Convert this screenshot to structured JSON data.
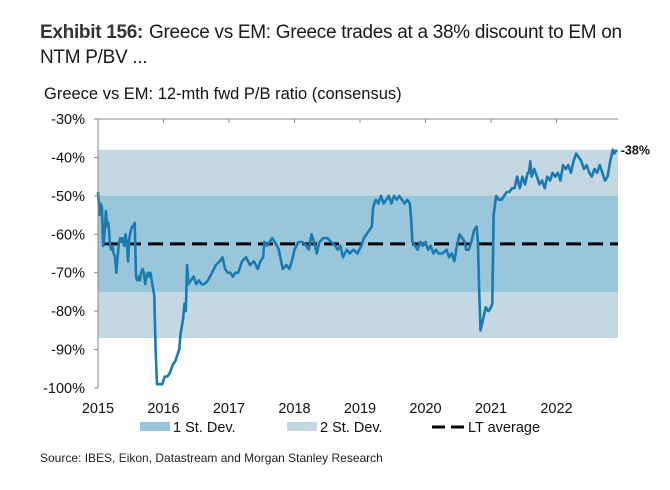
{
  "exhibit": {
    "label": "Exhibit 156:",
    "headline": "Greece vs EM: Greece trades at a 38% discount to EM on NTM P/BV ..."
  },
  "source": "Source: IBES, Eikon, Datastream and Morgan Stanley Research",
  "chart_data": {
    "type": "line",
    "title": "Greece vs EM: 12-mth fwd P/B ratio (consensus)",
    "xlabel": "",
    "ylabel": "",
    "xlim": [
      2015.0,
      2022.95
    ],
    "ylim": [
      -100,
      -30
    ],
    "x_ticks": [
      "2015",
      "2016",
      "2017",
      "2018",
      "2019",
      "2020",
      "2021",
      "2022"
    ],
    "y_ticks": [
      "-30%",
      "-40%",
      "-50%",
      "-60%",
      "-70%",
      "-80%",
      "-90%",
      "-100%"
    ],
    "grid": false,
    "end_label": "-38%",
    "bands": [
      {
        "name": "2 St. Dev.",
        "from": -87,
        "to": -38,
        "color": "#c4d8e3"
      },
      {
        "name": "1 St. Dev.",
        "from": -75,
        "to": -50,
        "color": "#9ac6dc"
      }
    ],
    "reference_line": {
      "name": "LT average",
      "value": -62.5,
      "color": "#000000",
      "style": "dashed"
    },
    "legend": {
      "placement": "bottom",
      "entries": [
        "1 St. Dev.",
        "2 St. Dev.",
        "LT average"
      ]
    },
    "series": [
      {
        "name": "Greece vs EM",
        "color": "#1a7bb0",
        "points": [
          [
            2015.0,
            -49
          ],
          [
            2015.02,
            -55
          ],
          [
            2015.04,
            -52
          ],
          [
            2015.06,
            -53
          ],
          [
            2015.08,
            -63
          ],
          [
            2015.1,
            -60
          ],
          [
            2015.12,
            -54
          ],
          [
            2015.14,
            -58
          ],
          [
            2015.16,
            -57
          ],
          [
            2015.18,
            -62
          ],
          [
            2015.2,
            -64
          ],
          [
            2015.22,
            -63
          ],
          [
            2015.24,
            -65
          ],
          [
            2015.26,
            -66
          ],
          [
            2015.28,
            -70
          ],
          [
            2015.3,
            -66
          ],
          [
            2015.32,
            -62
          ],
          [
            2015.34,
            -61
          ],
          [
            2015.36,
            -62
          ],
          [
            2015.38,
            -61
          ],
          [
            2015.4,
            -63
          ],
          [
            2015.42,
            -60
          ],
          [
            2015.44,
            -62
          ],
          [
            2015.46,
            -67
          ],
          [
            2015.48,
            -61
          ],
          [
            2015.5,
            -59
          ],
          [
            2015.52,
            -58
          ],
          [
            2015.54,
            -58
          ],
          [
            2015.56,
            -57
          ],
          [
            2015.58,
            -71
          ],
          [
            2015.6,
            -72
          ],
          [
            2015.62,
            -71
          ],
          [
            2015.64,
            -72
          ],
          [
            2015.66,
            -70
          ],
          [
            2015.68,
            -69
          ],
          [
            2015.7,
            -70
          ],
          [
            2015.72,
            -73
          ],
          [
            2015.74,
            -71
          ],
          [
            2015.76,
            -70
          ],
          [
            2015.78,
            -71
          ],
          [
            2015.8,
            -70
          ],
          [
            2015.82,
            -72
          ],
          [
            2015.84,
            -74
          ],
          [
            2015.86,
            -76
          ],
          [
            2015.88,
            -90
          ],
          [
            2015.9,
            -99
          ],
          [
            2015.94,
            -99
          ],
          [
            2015.98,
            -99
          ],
          [
            2016.02,
            -97
          ],
          [
            2016.06,
            -97
          ],
          [
            2016.1,
            -96
          ],
          [
            2016.14,
            -94
          ],
          [
            2016.18,
            -93
          ],
          [
            2016.22,
            -91
          ],
          [
            2016.24,
            -90
          ],
          [
            2016.26,
            -86
          ],
          [
            2016.28,
            -84
          ],
          [
            2016.3,
            -82
          ],
          [
            2016.32,
            -78
          ],
          [
            2016.34,
            -80
          ],
          [
            2016.36,
            -68
          ],
          [
            2016.38,
            -73
          ],
          [
            2016.42,
            -72
          ],
          [
            2016.46,
            -71
          ],
          [
            2016.5,
            -73
          ],
          [
            2016.54,
            -72
          ],
          [
            2016.58,
            -73
          ],
          [
            2016.62,
            -73
          ],
          [
            2016.68,
            -72
          ],
          [
            2016.74,
            -70
          ],
          [
            2016.8,
            -68
          ],
          [
            2016.86,
            -67
          ],
          [
            2016.9,
            -66
          ],
          [
            2016.94,
            -69
          ],
          [
            2016.98,
            -70
          ],
          [
            2017.02,
            -70
          ],
          [
            2017.06,
            -71
          ],
          [
            2017.1,
            -70
          ],
          [
            2017.14,
            -70
          ],
          [
            2017.2,
            -67
          ],
          [
            2017.26,
            -66
          ],
          [
            2017.32,
            -68
          ],
          [
            2017.38,
            -67
          ],
          [
            2017.44,
            -69
          ],
          [
            2017.48,
            -67
          ],
          [
            2017.52,
            -66
          ],
          [
            2017.54,
            -62
          ],
          [
            2017.58,
            -63
          ],
          [
            2017.62,
            -62
          ],
          [
            2017.66,
            -61
          ],
          [
            2017.7,
            -62
          ],
          [
            2017.76,
            -64
          ],
          [
            2017.82,
            -69
          ],
          [
            2017.88,
            -68
          ],
          [
            2017.92,
            -69
          ],
          [
            2017.96,
            -67
          ],
          [
            2018.0,
            -64
          ],
          [
            2018.06,
            -62
          ],
          [
            2018.12,
            -62
          ],
          [
            2018.18,
            -63
          ],
          [
            2018.22,
            -64
          ],
          [
            2018.26,
            -60
          ],
          [
            2018.3,
            -62
          ],
          [
            2018.34,
            -65
          ],
          [
            2018.38,
            -62
          ],
          [
            2018.44,
            -61
          ],
          [
            2018.5,
            -61
          ],
          [
            2018.56,
            -62
          ],
          [
            2018.62,
            -63
          ],
          [
            2018.66,
            -64
          ],
          [
            2018.7,
            -63
          ],
          [
            2018.74,
            -66
          ],
          [
            2018.8,
            -64
          ],
          [
            2018.84,
            -65
          ],
          [
            2018.9,
            -64
          ],
          [
            2018.96,
            -65
          ],
          [
            2019.02,
            -63
          ],
          [
            2019.06,
            -61
          ],
          [
            2019.1,
            -60
          ],
          [
            2019.14,
            -59
          ],
          [
            2019.18,
            -58
          ],
          [
            2019.2,
            -53
          ],
          [
            2019.24,
            -51
          ],
          [
            2019.28,
            -52
          ],
          [
            2019.32,
            -50
          ],
          [
            2019.36,
            -52
          ],
          [
            2019.4,
            -51
          ],
          [
            2019.44,
            -50
          ],
          [
            2019.48,
            -52
          ],
          [
            2019.52,
            -50
          ],
          [
            2019.56,
            -51
          ],
          [
            2019.6,
            -50
          ],
          [
            2019.64,
            -51
          ],
          [
            2019.68,
            -52
          ],
          [
            2019.72,
            -51
          ],
          [
            2019.76,
            -52
          ],
          [
            2019.78,
            -56
          ],
          [
            2019.8,
            -62
          ],
          [
            2019.84,
            -63
          ],
          [
            2019.88,
            -64
          ],
          [
            2019.92,
            -62
          ],
          [
            2019.96,
            -63
          ],
          [
            2020.0,
            -62
          ],
          [
            2020.04,
            -64
          ],
          [
            2020.08,
            -63
          ],
          [
            2020.12,
            -65
          ],
          [
            2020.16,
            -64
          ],
          [
            2020.2,
            -65
          ],
          [
            2020.26,
            -65
          ],
          [
            2020.32,
            -64
          ],
          [
            2020.36,
            -66
          ],
          [
            2020.4,
            -65
          ],
          [
            2020.44,
            -67
          ],
          [
            2020.48,
            -63
          ],
          [
            2020.52,
            -60
          ],
          [
            2020.56,
            -61
          ],
          [
            2020.6,
            -62
          ],
          [
            2020.62,
            -64
          ],
          [
            2020.66,
            -64
          ],
          [
            2020.7,
            -62
          ],
          [
            2020.74,
            -59
          ],
          [
            2020.78,
            -58
          ],
          [
            2020.8,
            -62
          ],
          [
            2020.82,
            -75
          ],
          [
            2020.84,
            -85
          ],
          [
            2020.88,
            -82
          ],
          [
            2020.92,
            -79
          ],
          [
            2020.96,
            -80
          ],
          [
            2021.0,
            -79
          ],
          [
            2021.02,
            -78
          ],
          [
            2021.04,
            -55
          ],
          [
            2021.08,
            -50
          ],
          [
            2021.12,
            -51
          ],
          [
            2021.16,
            -51
          ],
          [
            2021.2,
            -50
          ],
          [
            2021.24,
            -49
          ],
          [
            2021.28,
            -49
          ],
          [
            2021.32,
            -48
          ],
          [
            2021.36,
            -48
          ],
          [
            2021.4,
            -45
          ],
          [
            2021.44,
            -48
          ],
          [
            2021.48,
            -45
          ],
          [
            2021.52,
            -47
          ],
          [
            2021.56,
            -44
          ],
          [
            2021.58,
            -44
          ],
          [
            2021.6,
            -41
          ],
          [
            2021.62,
            -45
          ],
          [
            2021.66,
            -43
          ],
          [
            2021.7,
            -45
          ],
          [
            2021.74,
            -47
          ],
          [
            2021.78,
            -46
          ],
          [
            2021.82,
            -48
          ],
          [
            2021.86,
            -45
          ],
          [
            2021.9,
            -46
          ],
          [
            2021.94,
            -44
          ],
          [
            2021.98,
            -45
          ],
          [
            2022.02,
            -44
          ],
          [
            2022.06,
            -46
          ],
          [
            2022.1,
            -42
          ],
          [
            2022.14,
            -43
          ],
          [
            2022.18,
            -42
          ],
          [
            2022.22,
            -44
          ],
          [
            2022.26,
            -41
          ],
          [
            2022.3,
            -39
          ],
          [
            2022.34,
            -40
          ],
          [
            2022.38,
            -41
          ],
          [
            2022.42,
            -43
          ],
          [
            2022.46,
            -42
          ],
          [
            2022.5,
            -44
          ],
          [
            2022.54,
            -45
          ],
          [
            2022.58,
            -43
          ],
          [
            2022.62,
            -44
          ],
          [
            2022.66,
            -42
          ],
          [
            2022.7,
            -44
          ],
          [
            2022.74,
            -46
          ],
          [
            2022.78,
            -45
          ],
          [
            2022.82,
            -41
          ],
          [
            2022.86,
            -38
          ],
          [
            2022.88,
            -39
          ],
          [
            2022.92,
            -38
          ]
        ]
      }
    ]
  }
}
